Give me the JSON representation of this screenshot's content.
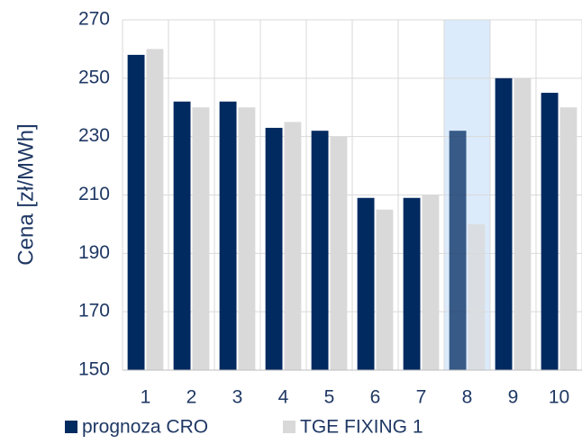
{
  "chart_data": {
    "type": "bar",
    "y_label": "Cena [zł/MWh]",
    "categories": [
      "1",
      "2",
      "3",
      "4",
      "5",
      "6",
      "7",
      "8",
      "9",
      "10"
    ],
    "series": [
      {
        "name": "prognoza CRO",
        "color": "#002a60",
        "values": [
          258,
          242,
          242,
          233,
          232,
          209,
          209,
          232,
          250,
          245
        ]
      },
      {
        "name": "TGE FIXING 1",
        "color": "#d9d9d9",
        "values": [
          260,
          240,
          240,
          235,
          230,
          205,
          210,
          200,
          250,
          240
        ]
      }
    ],
    "ylim": [
      150,
      270
    ],
    "yticks": [
      150,
      170,
      190,
      210,
      230,
      250,
      270
    ],
    "grid": true,
    "highlight_index": 7,
    "legend": "bottom"
  }
}
